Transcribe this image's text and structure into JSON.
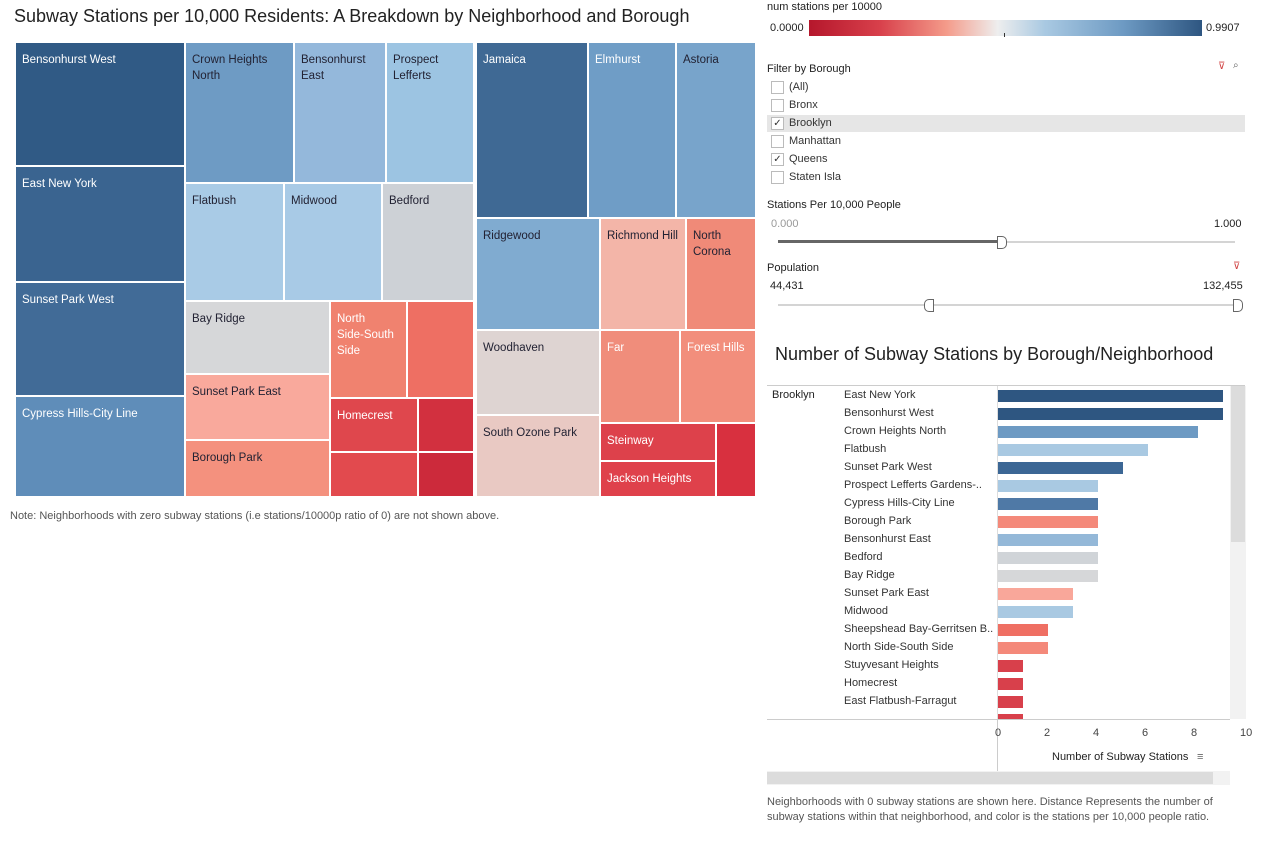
{
  "title": "Subway Stations per 10,000 Residents: A Breakdown by Neighborhood and Borough",
  "note": "Note: Neighborhoods with zero subway stations (i.e stations/10000p ratio of 0) are not shown above.",
  "treemap_labels": {
    "bensonhurst_west": "Bensonhurst West",
    "east_new_york": "East New York",
    "sunset_park_west": "Sunset Park West",
    "cypress_hills": "Cypress Hills-City Line",
    "crown_heights_north": "Crown Heights\nNorth",
    "bensonhurst_east": "Bensonhurst\nEast",
    "prospect_lefferts": "Prospect\nLefferts",
    "flatbush": "Flatbush",
    "midwood": "Midwood",
    "bedford": "Bedford",
    "bay_ridge": "Bay Ridge",
    "north_side": "North\nSide-South\nSide",
    "sunset_park_east": "Sunset Park East",
    "homecrest": "Homecrest",
    "borough_park": "Borough Park",
    "jamaica": "Jamaica",
    "elmhurst": "Elmhurst",
    "astoria": "Astoria",
    "ridgewood": "Ridgewood",
    "richmond_hill": "Richmond Hill",
    "north_corona": "North\nCorona",
    "woodhaven": "Woodhaven",
    "far": "Far",
    "forest_hills": "Forest Hills",
    "south_ozone_park": "South Ozone Park",
    "steinway": "Steinway",
    "jackson_heights": "Jackson Heights"
  },
  "legend": {
    "title": "num stations per 10000",
    "min": "0.0000",
    "max": "0.9907"
  },
  "filter": {
    "title": "Filter by Borough",
    "options": [
      {
        "label": "(All)",
        "checked": ""
      },
      {
        "label": "Bronx",
        "checked": ""
      },
      {
        "label": "Brooklyn",
        "checked": "✓"
      },
      {
        "label": "Manhattan",
        "checked": ""
      },
      {
        "label": "Queens",
        "checked": "✓"
      },
      {
        "label": "Staten Isla",
        "checked": ""
      }
    ]
  },
  "stations_slider": {
    "title": "Stations Per 10,000 People",
    "min": "0.000",
    "max": "1.000"
  },
  "population_slider": {
    "title": "Population",
    "min": "44,431",
    "max": "132,455"
  },
  "bar_chart_title": "Number of Subway Stations by Borough/Neighborhood",
  "bar_borough": "Brooklyn",
  "bar_axis_title": "Number of Subway Stations",
  "axis_ticks": [
    "0",
    "2",
    "4",
    "6",
    "8",
    "10"
  ],
  "footnote": "Neighborhoods with 0 subway stations are shown here. Distance Represents the number of subway stations within that neighborhood, and color is the stations per 10,000 people ratio.",
  "colors": {
    "dark_blue": "#2e5681",
    "mid_blue": "#6d9ac3",
    "light_blue": "#a9c9e2",
    "grey": "#d0d4d8",
    "light_red": "#f4a493",
    "red": "#ef7d6c",
    "dark_red": "#d8404b"
  },
  "chart_data": {
    "type": "bar",
    "categories": [
      "East New York",
      "Bensonhurst West",
      "Crown Heights North",
      "Flatbush",
      "Sunset Park West",
      "Prospect Lefferts Gardens-..",
      "Cypress Hills-City Line",
      "Borough Park",
      "Bensonhurst East",
      "Bedford",
      "Bay Ridge",
      "Sunset Park East",
      "Midwood",
      "Sheepshead Bay-Gerritsen B..",
      "North Side-South Side",
      "Stuyvesant Heights",
      "Homecrest",
      "East Flatbush-Farragut"
    ],
    "values": [
      9,
      9,
      8,
      6,
      5,
      4,
      4,
      4,
      4,
      4,
      4,
      3,
      3,
      2,
      2,
      1,
      1,
      1
    ],
    "colors": [
      "#2e5681",
      "#2e5681",
      "#6d9ac3",
      "#a9c9e2",
      "#3c6795",
      "#a9c9e2",
      "#4f79a6",
      "#f4897a",
      "#94b8d8",
      "#d0d4d8",
      "#d6d7d9",
      "#f9a79a",
      "#a9c9e2",
      "#ef6f63",
      "#f4897a",
      "#d8404b",
      "#d8404b",
      "#d8404b"
    ],
    "xlim": [
      0,
      10
    ],
    "xlabel": "Number of Subway Stations"
  }
}
